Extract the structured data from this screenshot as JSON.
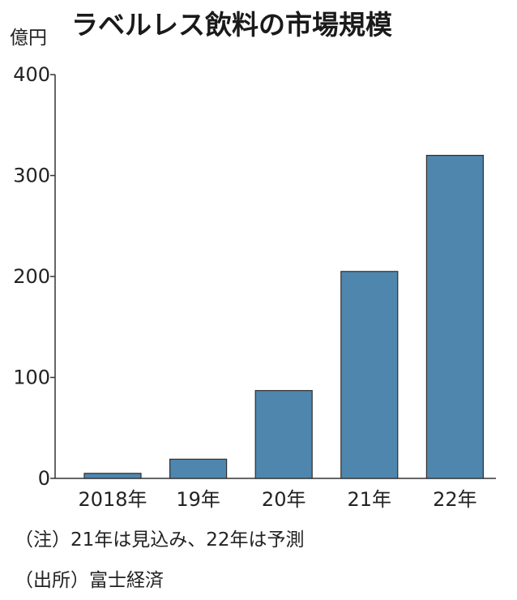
{
  "chart_data": {
    "type": "bar",
    "title": "ラベルレス飲料の市場規模",
    "unit_label": "億円",
    "categories": [
      "2018年",
      "19年",
      "20年",
      "21年",
      "22年"
    ],
    "values": [
      5,
      19,
      87,
      205,
      320
    ],
    "ylim": [
      0,
      400
    ],
    "yticks": [
      0,
      100,
      200,
      300,
      400
    ],
    "grid": false,
    "legend": "none",
    "bar_color": "#4f86ad"
  },
  "notes": {
    "note_1": "（注）21年は見込み、22年は予測",
    "note_2": "（出所）富士経済"
  }
}
